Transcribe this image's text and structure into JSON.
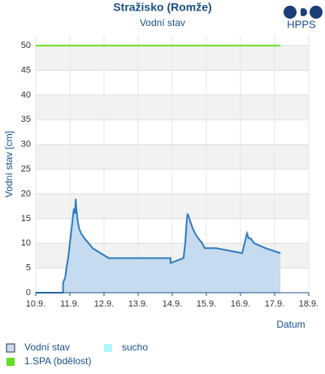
{
  "chart_data": {
    "type": "line",
    "title": "Stražisko (Romže)",
    "subtitle": "Vodní stav",
    "logo": "HPPS",
    "y_label": "Vodní stav [cm]",
    "x_label": "Datum",
    "xlim": [
      10,
      18
    ],
    "xticks": [
      {
        "value": 10,
        "label": "10.9."
      },
      {
        "value": 11,
        "label": "11.9."
      },
      {
        "value": 12,
        "label": "12.9."
      },
      {
        "value": 13,
        "label": "13.9."
      },
      {
        "value": 14,
        "label": "14.9."
      },
      {
        "value": 15,
        "label": "15.9."
      },
      {
        "value": 16,
        "label": "16.9."
      },
      {
        "value": 17,
        "label": "17.9."
      },
      {
        "value": 18,
        "label": "18.9."
      }
    ],
    "ylim": [
      0,
      52
    ],
    "yticks": [
      0,
      5,
      10,
      15,
      20,
      25,
      30,
      35,
      40,
      45,
      50
    ],
    "grid": true,
    "series": [
      {
        "name": "Vodní stav",
        "color": "#2e7cbf",
        "fill": "#c6dbef",
        "x": [
          10,
          10.8,
          10.8,
          10.86,
          10.9,
          10.95,
          11.0,
          11.05,
          11.1,
          11.12,
          11.15,
          11.17,
          11.19,
          11.22,
          11.27,
          11.33,
          11.43,
          11.55,
          11.67,
          11.9,
          12.14,
          13.95,
          13.95,
          14.33,
          14.38,
          14.43,
          14.45,
          14.5,
          14.55,
          14.6,
          14.67,
          14.76,
          14.88,
          14.95,
          15.29,
          16.05,
          16.19,
          16.24,
          16.3,
          16.4,
          16.74,
          17.17
        ],
        "values": [
          0,
          0,
          2,
          3,
          5,
          7,
          10,
          13,
          16,
          17,
          16,
          19,
          17,
          15,
          13,
          12,
          11,
          10,
          9,
          8,
          7,
          7,
          6,
          7,
          10,
          15,
          16,
          15,
          14,
          13,
          12,
          11,
          10,
          9,
          9,
          8,
          12,
          11,
          11,
          10,
          9,
          8
        ]
      },
      {
        "name": "sucho",
        "color": "#b3f5f5",
        "x": [],
        "values": []
      },
      {
        "name": "1.SPA (bdělost)",
        "color": "#66dd22",
        "x": [
          10,
          17.17
        ],
        "values": [
          50,
          50
        ]
      }
    ]
  }
}
